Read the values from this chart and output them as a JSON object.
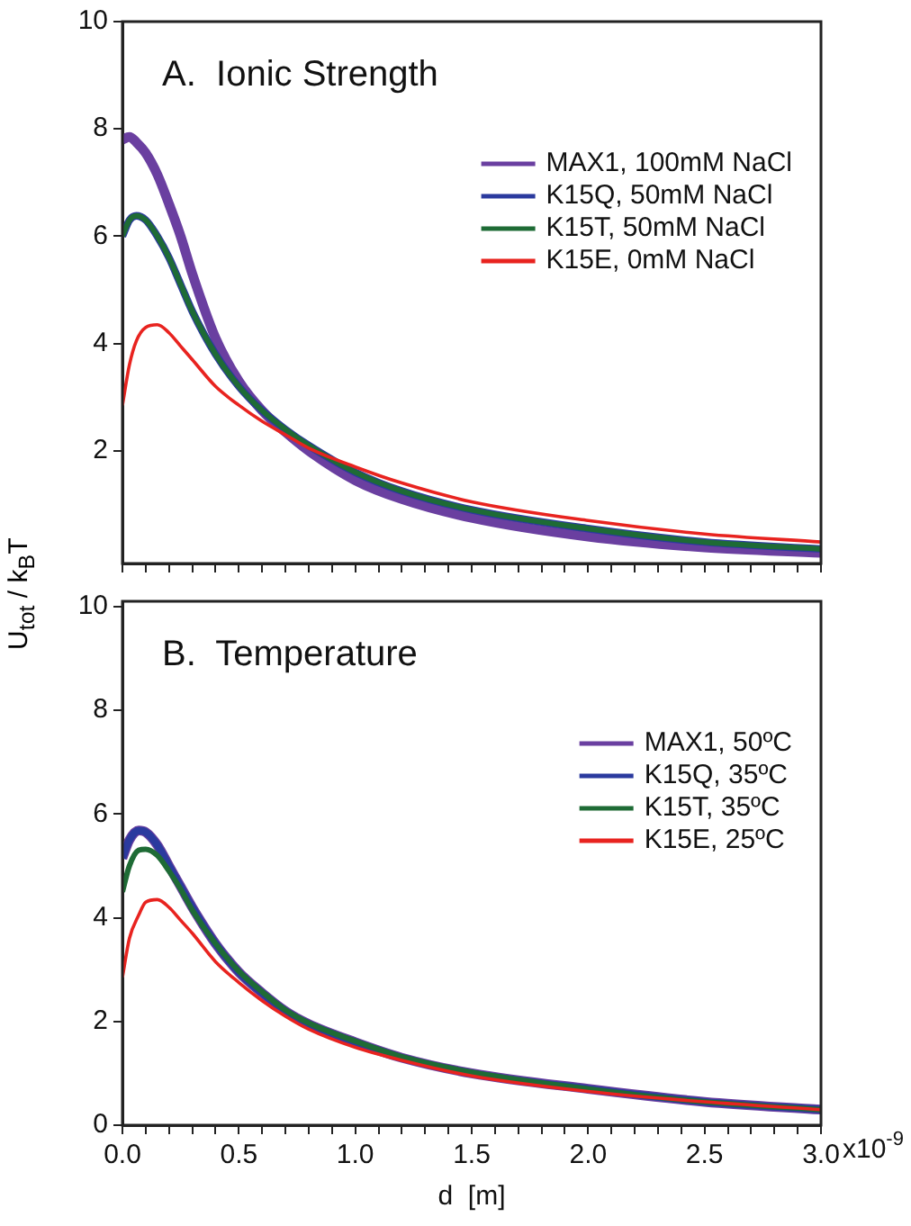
{
  "chart_data": [
    {
      "type": "line",
      "title": "A.  Ionic Strength",
      "ylabel": "U$_{tot}$ / k$_{B}$T",
      "legend": "right",
      "tick_labels": "y",
      "x": [
        0,
        0.03,
        0.06,
        0.1,
        0.15,
        0.2,
        0.25,
        0.3,
        0.4,
        0.5,
        0.6,
        0.7,
        0.8,
        1.0,
        1.2,
        1.5,
        2.0,
        2.5,
        3.0
      ],
      "xlim": [
        0,
        3
      ],
      "xticks": [
        0,
        0.1,
        0.2,
        0.3,
        0.4,
        0.5,
        0.6,
        0.7,
        0.8,
        0.9,
        1.0,
        1.1,
        1.2,
        1.3,
        1.4,
        1.5,
        1.6,
        1.7,
        1.8,
        1.9,
        2.0,
        2.1,
        2.2,
        2.3,
        2.4,
        2.5,
        2.6,
        2.7,
        2.8,
        2.9,
        3.0
      ],
      "ylim": [
        -0.1,
        10
      ],
      "yticks": [
        2,
        4,
        6,
        8,
        10
      ],
      "series": [
        {
          "name": "MAX1, 100mM NaCl",
          "color": "#6a3fa0",
          "values": [
            7.8,
            7.85,
            7.75,
            7.55,
            7.15,
            6.6,
            6.0,
            5.3,
            4.1,
            3.3,
            2.75,
            2.35,
            2.0,
            1.45,
            1.1,
            0.75,
            0.4,
            0.2,
            0.1
          ]
        },
        {
          "name": "K15Q, 50mM NaCl",
          "color": "#2b3a9e",
          "values": [
            6.0,
            6.3,
            6.38,
            6.3,
            6.0,
            5.6,
            5.1,
            4.6,
            3.8,
            3.2,
            2.75,
            2.4,
            2.1,
            1.6,
            1.25,
            0.9,
            0.55,
            0.3,
            0.17
          ]
        },
        {
          "name": "K15T, 50mM NaCl",
          "color": "#1e6b35",
          "values": [
            6.0,
            6.3,
            6.38,
            6.3,
            6.0,
            5.6,
            5.1,
            4.6,
            3.8,
            3.2,
            2.75,
            2.4,
            2.1,
            1.6,
            1.25,
            0.9,
            0.55,
            0.3,
            0.17
          ]
        },
        {
          "name": "K15E, 0mM NaCl",
          "color": "#e8231f",
          "values": [
            2.85,
            3.6,
            4.05,
            4.3,
            4.35,
            4.2,
            3.95,
            3.7,
            3.2,
            2.85,
            2.55,
            2.3,
            2.05,
            1.7,
            1.4,
            1.05,
            0.7,
            0.45,
            0.3
          ]
        }
      ]
    },
    {
      "type": "line",
      "title": "B.  Temperature",
      "xlabel": "d  [m]",
      "legend": "right",
      "x": [
        0,
        0.03,
        0.07,
        0.1,
        0.15,
        0.2,
        0.25,
        0.3,
        0.4,
        0.5,
        0.6,
        0.7,
        0.8,
        1.0,
        1.2,
        1.5,
        2.0,
        2.5,
        3.0
      ],
      "xlim": [
        0,
        3
      ],
      "xticks": [
        {
          "value": 0,
          "label": "0.0"
        },
        {
          "value": 0.1,
          "label": null
        },
        {
          "value": 0.2,
          "label": null
        },
        {
          "value": 0.3,
          "label": null
        },
        {
          "value": 0.4,
          "label": null
        },
        0.5,
        {
          "value": 0.6,
          "label": null
        },
        {
          "value": 0.7,
          "label": null
        },
        {
          "value": 0.8,
          "label": null
        },
        {
          "value": 0.9,
          "label": null
        },
        {
          "value": 1,
          "label": "1.0"
        },
        {
          "value": 1.1,
          "label": null
        },
        {
          "value": 1.2,
          "label": null
        },
        {
          "value": 1.3,
          "label": null
        },
        {
          "value": 1.4,
          "label": null
        },
        1.5,
        {
          "value": 1.6,
          "label": null
        },
        {
          "value": 1.7,
          "label": null
        },
        {
          "value": 1.8,
          "label": null
        },
        {
          "value": 1.9,
          "label": null
        },
        {
          "value": 2,
          "label": "2.0"
        },
        {
          "value": 2.1,
          "label": null
        },
        {
          "value": 2.2,
          "label": null
        },
        {
          "value": 2.3,
          "label": null
        },
        {
          "value": 2.4,
          "label": null
        },
        2.5,
        {
          "value": 2.6,
          "label": null
        },
        {
          "value": 2.7,
          "label": null
        },
        {
          "value": 2.8,
          "label": null
        },
        {
          "value": 2.9,
          "label": null
        },
        {
          "value": 3,
          "label": "3.0"
        }
      ],
      "annotations": [
        "x10$^{-9}$"
      ],
      "ylim": [
        0,
        10.1
      ],
      "yticks": [
        0,
        2,
        4,
        6,
        8,
        10
      ],
      "series": [
        {
          "name": "MAX1, 50ºC",
          "color": "#6a3fa0",
          "values": [
            5.15,
            5.5,
            5.68,
            5.65,
            5.4,
            5.0,
            4.6,
            4.2,
            3.5,
            2.95,
            2.55,
            2.2,
            1.95,
            1.6,
            1.3,
            1.0,
            0.7,
            0.45,
            0.3
          ]
        },
        {
          "name": "K15Q, 35ºC",
          "color": "#2b3a9e",
          "values": [
            5.15,
            5.5,
            5.68,
            5.65,
            5.4,
            5.0,
            4.6,
            4.2,
            3.5,
            2.95,
            2.55,
            2.2,
            1.95,
            1.6,
            1.3,
            1.0,
            0.7,
            0.45,
            0.3
          ]
        },
        {
          "name": "K15T, 35ºC",
          "color": "#1e6b35",
          "values": [
            4.5,
            5.0,
            5.3,
            5.32,
            5.2,
            4.9,
            4.55,
            4.15,
            3.5,
            2.97,
            2.57,
            2.22,
            1.97,
            1.62,
            1.32,
            1.02,
            0.7,
            0.45,
            0.3
          ]
        },
        {
          "name": "K15E, 25ºC",
          "color": "#e8231f",
          "values": [
            2.85,
            3.6,
            4.05,
            4.3,
            4.35,
            4.2,
            3.95,
            3.7,
            3.15,
            2.75,
            2.4,
            2.1,
            1.85,
            1.5,
            1.25,
            0.95,
            0.65,
            0.45,
            0.3
          ]
        }
      ]
    }
  ]
}
